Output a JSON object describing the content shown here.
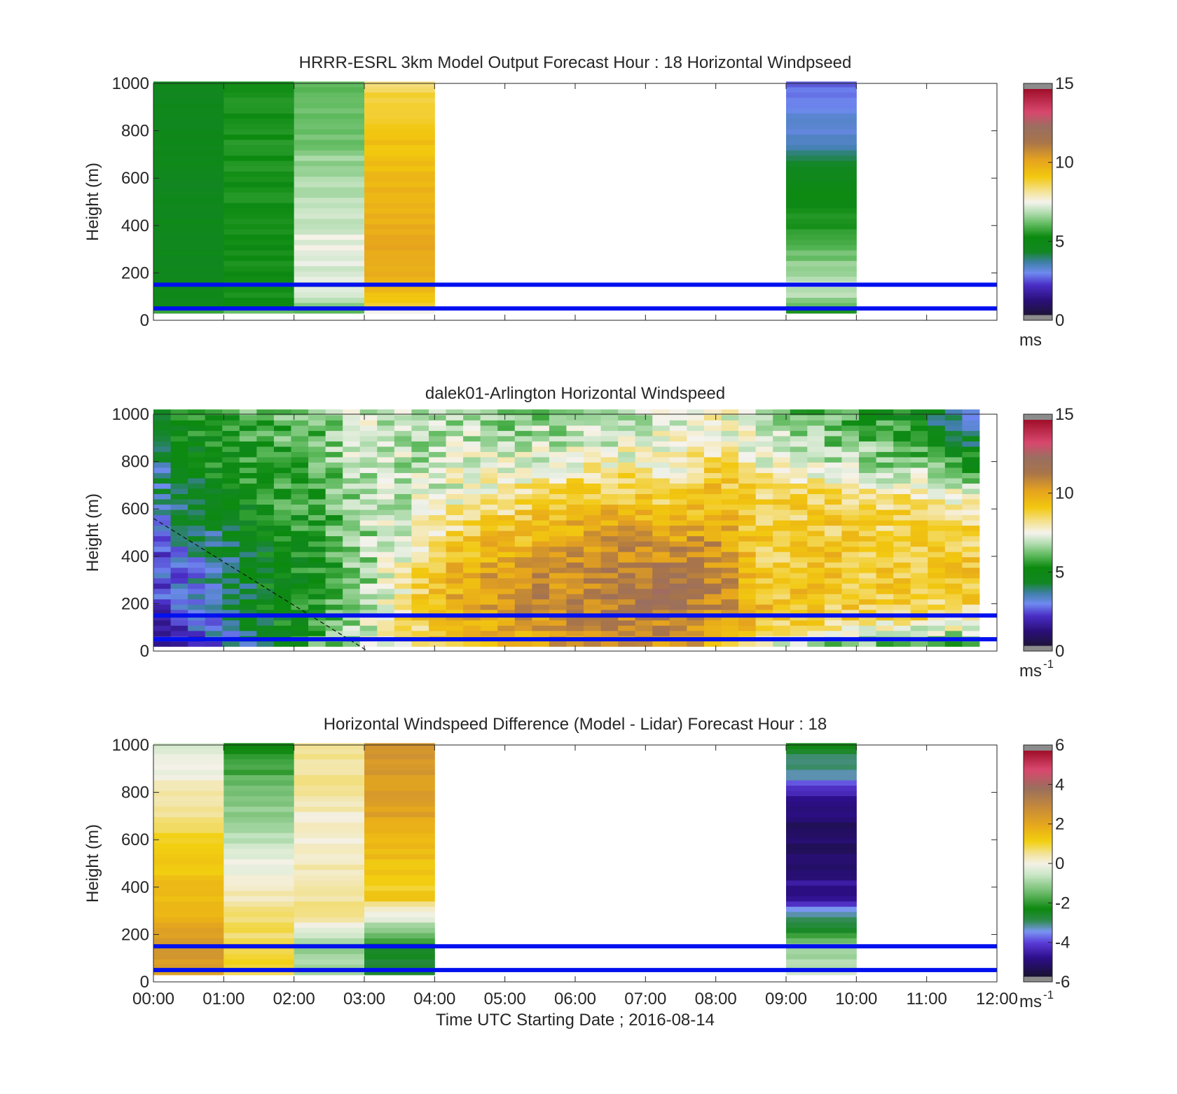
{
  "chart_data": [
    {
      "id": "model",
      "type": "heatmap",
      "title": "HRRR-ESRL 3km Model Output   Forecast Hour : 18 Horizontal Windpseed",
      "ylabel": "Height (m)",
      "xlabel": "",
      "ylim": [
        0,
        1000
      ],
      "xlim": [
        0,
        12
      ],
      "yticks": [
        "0",
        "200",
        "400",
        "600",
        "800",
        "1000"
      ],
      "xticks": [
        "00:00",
        "01:00",
        "02:00",
        "03:00",
        "04:00",
        "05:00",
        "06:00",
        "07:00",
        "08:00",
        "09:00",
        "10:00",
        "11:00",
        "12:00"
      ],
      "show_xtick_labels": false,
      "colorbar": {
        "scale": "windspeed",
        "min": 0,
        "max": 15,
        "ticks": [
          "0",
          "5",
          "10",
          "15"
        ],
        "unit": "ms",
        "unit_sup": ""
      },
      "reference_lines_m": [
        150,
        50
      ],
      "columns": [
        {
          "t0": 0,
          "t1": 1,
          "values": [
            [
              30,
              6.5
            ],
            [
              55,
              4.8
            ],
            [
              70,
              4.6
            ],
            [
              95,
              4.5
            ],
            [
              1000,
              4.5
            ]
          ]
        },
        {
          "t0": 1,
          "t1": 2,
          "values": [
            [
              30,
              6.8
            ],
            [
              60,
              5.2
            ],
            [
              1000,
              5.3
            ]
          ]
        },
        {
          "t0": 2,
          "t1": 3,
          "values": [
            [
              30,
              6.0
            ],
            [
              65,
              6.6
            ],
            [
              100,
              7.0
            ],
            [
              330,
              7.4
            ],
            [
              450,
              7.0
            ],
            [
              600,
              6.8
            ],
            [
              700,
              6.5
            ],
            [
              800,
              6.1
            ],
            [
              900,
              6.0
            ],
            [
              1000,
              6.0
            ]
          ]
        },
        {
          "t0": 3,
          "t1": 4,
          "values": [
            [
              30,
              7.2
            ],
            [
              70,
              9.0
            ],
            [
              100,
              9.5
            ],
            [
              250,
              10.2
            ],
            [
              500,
              9.8
            ],
            [
              800,
              9.3
            ],
            [
              900,
              9.0
            ],
            [
              1000,
              8.6
            ]
          ]
        },
        {
          "t0": 9,
          "t1": 10,
          "values": [
            [
              30,
              4.9
            ],
            [
              60,
              6.2
            ],
            [
              150,
              7.2
            ],
            [
              200,
              6.7
            ],
            [
              300,
              6.0
            ],
            [
              400,
              5.5
            ],
            [
              500,
              5.0
            ],
            [
              600,
              4.6
            ],
            [
              700,
              3.6
            ],
            [
              800,
              3.2
            ],
            [
              1000,
              2.5
            ]
          ]
        }
      ]
    },
    {
      "id": "lidar",
      "type": "heatmap",
      "title": "dalek01-Arlington  Horizontal Windspeed",
      "ylabel": "Height (m)",
      "xlabel": "",
      "ylim": [
        0,
        1000
      ],
      "xlim": [
        0,
        12
      ],
      "yticks": [
        "0",
        "200",
        "400",
        "600",
        "800",
        "1000"
      ],
      "xticks": [
        "00:00",
        "01:00",
        "02:00",
        "03:00",
        "04:00",
        "05:00",
        "06:00",
        "07:00",
        "08:00",
        "09:00",
        "10:00",
        "11:00",
        "12:00"
      ],
      "show_xtick_labels": false,
      "colorbar": {
        "scale": "windspeed",
        "min": 0,
        "max": 15,
        "ticks": [
          "0",
          "5",
          "10",
          "15"
        ],
        "unit": "ms",
        "unit_sup": "-1"
      },
      "reference_lines_m": [
        150,
        50
      ],
      "dashed_line": [
        [
          0,
          560
        ],
        [
          3.05,
          0
        ]
      ],
      "profiles": [
        [
          [
            0,
            1.6
          ],
          [
            200,
            2.0
          ],
          [
            400,
            2.6
          ],
          [
            550,
            3.2
          ],
          [
            700,
            3.6
          ],
          [
            800,
            3.8
          ],
          [
            900,
            4.6
          ],
          [
            1000,
            4.9
          ]
        ],
        [
          [
            0,
            2.6
          ],
          [
            200,
            3.2
          ],
          [
            400,
            3.6
          ],
          [
            600,
            4.4
          ],
          [
            800,
            5.1
          ],
          [
            1000,
            5.4
          ]
        ],
        [
          [
            0,
            4.3
          ],
          [
            200,
            4.6
          ],
          [
            400,
            4.7
          ],
          [
            600,
            5.2
          ],
          [
            800,
            5.6
          ],
          [
            1000,
            6.0
          ]
        ],
        [
          [
            0,
            5.8
          ],
          [
            200,
            5.2
          ],
          [
            400,
            5.2
          ],
          [
            600,
            5.6
          ],
          [
            800,
            6.0
          ],
          [
            1000,
            6.2
          ]
        ],
        [
          [
            0,
            7.2
          ],
          [
            300,
            6.4
          ],
          [
            500,
            6.6
          ],
          [
            700,
            6.9
          ],
          [
            900,
            7.1
          ],
          [
            1000,
            7.3
          ]
        ],
        [
          [
            0,
            8.0
          ],
          [
            150,
            8.8
          ],
          [
            300,
            8.5
          ],
          [
            500,
            7.6
          ],
          [
            700,
            7.0
          ],
          [
            1000,
            6.6
          ]
        ],
        [
          [
            0,
            9.6
          ],
          [
            200,
            10.3
          ],
          [
            350,
            10.0
          ],
          [
            500,
            8.8
          ],
          [
            700,
            7.6
          ],
          [
            1000,
            6.6
          ]
        ],
        [
          [
            0,
            9.8
          ],
          [
            200,
            10.8
          ],
          [
            400,
            10.2
          ],
          [
            600,
            8.6
          ],
          [
            800,
            7.4
          ],
          [
            1000,
            6.3
          ]
        ],
        [
          [
            0,
            10.2
          ],
          [
            200,
            11.2
          ],
          [
            400,
            10.6
          ],
          [
            650,
            9.3
          ],
          [
            800,
            7.5
          ],
          [
            1000,
            6.4
          ]
        ],
        [
          [
            0,
            10.4
          ],
          [
            250,
            11.6
          ],
          [
            450,
            10.8
          ],
          [
            650,
            9.3
          ],
          [
            800,
            7.8
          ],
          [
            1000,
            6.6
          ]
        ],
        [
          [
            0,
            10.2
          ],
          [
            250,
            12.0
          ],
          [
            400,
            11.0
          ],
          [
            600,
            9.3
          ],
          [
            750,
            8.0
          ],
          [
            1000,
            7.0
          ]
        ],
        [
          [
            0,
            10.0
          ],
          [
            250,
            11.2
          ],
          [
            450,
            10.6
          ],
          [
            700,
            9.4
          ],
          [
            850,
            8.0
          ],
          [
            1000,
            7.8
          ]
        ],
        [
          [
            0,
            7.0
          ],
          [
            150,
            9.6
          ],
          [
            350,
            9.0
          ],
          [
            650,
            8.6
          ],
          [
            800,
            7.4
          ],
          [
            1000,
            6.6
          ]
        ],
        [
          [
            0,
            6.0
          ],
          [
            150,
            9.0
          ],
          [
            400,
            9.4
          ],
          [
            650,
            8.8
          ],
          [
            800,
            7.0
          ],
          [
            1000,
            5.9
          ]
        ],
        [
          [
            0,
            5.6
          ],
          [
            150,
            8.9
          ],
          [
            400,
            9.0
          ],
          [
            650,
            8.3
          ],
          [
            800,
            6.5
          ],
          [
            1000,
            5.6
          ]
        ],
        [
          [
            0,
            5.2
          ],
          [
            150,
            8.8
          ],
          [
            400,
            9.0
          ],
          [
            650,
            8.4
          ],
          [
            800,
            6.5
          ],
          [
            1000,
            4.6
          ]
        ],
        [
          [
            0,
            4.8
          ],
          [
            150,
            8.6
          ],
          [
            350,
            9.2
          ],
          [
            600,
            8.3
          ],
          [
            750,
            6.0
          ],
          [
            900,
            4.0
          ],
          [
            1000,
            2.6
          ]
        ]
      ]
    },
    {
      "id": "difference",
      "type": "heatmap",
      "title": "Horizontal Windspeed Difference (Model - Lidar) Forecast Hour : 18",
      "ylabel": "Height (m)",
      "xlabel": "Time UTC  Starting Date ; 2016-08-14",
      "ylim": [
        0,
        1000
      ],
      "xlim": [
        0,
        12
      ],
      "yticks": [
        "0",
        "200",
        "400",
        "600",
        "800",
        "1000"
      ],
      "xticks": [
        "00:00",
        "01:00",
        "02:00",
        "03:00",
        "04:00",
        "05:00",
        "06:00",
        "07:00",
        "08:00",
        "09:00",
        "10:00",
        "11:00",
        "12:00"
      ],
      "show_xtick_labels": true,
      "colorbar": {
        "scale": "difference",
        "min": -6,
        "max": 6,
        "ticks": [
          "-6",
          "-4",
          "-2",
          "0",
          "2",
          "4",
          "6"
        ],
        "unit": "ms",
        "unit_sup": "-1"
      },
      "reference_lines_m": [
        150,
        50
      ],
      "columns": [
        {
          "t0": 0,
          "t1": 1,
          "values": [
            [
              30,
              2.2
            ],
            [
              100,
              2.6
            ],
            [
              250,
              2.0
            ],
            [
              400,
              1.6
            ],
            [
              600,
              1.1
            ],
            [
              750,
              0.5
            ],
            [
              850,
              0.2
            ],
            [
              950,
              -0.3
            ],
            [
              1000,
              -0.6
            ]
          ]
        },
        {
          "t0": 1,
          "t1": 2,
          "values": [
            [
              30,
              1.0
            ],
            [
              160,
              1.0
            ],
            [
              300,
              0.5
            ],
            [
              450,
              0.0
            ],
            [
              500,
              -0.1
            ],
            [
              600,
              -0.8
            ],
            [
              750,
              -1.3
            ],
            [
              900,
              -1.9
            ],
            [
              1000,
              -2.5
            ]
          ]
        },
        {
          "t0": 2,
          "t1": 3,
          "values": [
            [
              30,
              -0.9
            ],
            [
              160,
              -1.0
            ],
            [
              220,
              -0.2
            ],
            [
              300,
              0.6
            ],
            [
              500,
              0.3
            ],
            [
              700,
              0.1
            ],
            [
              800,
              0.5
            ],
            [
              1000,
              0.6
            ]
          ]
        },
        {
          "t0": 3,
          "t1": 4,
          "values": [
            [
              30,
              -3.0
            ],
            [
              150,
              -2.4
            ],
            [
              250,
              -0.6
            ],
            [
              350,
              1.2
            ],
            [
              500,
              1.4
            ],
            [
              700,
              2.2
            ],
            [
              1000,
              2.6
            ]
          ]
        },
        {
          "t0": 9,
          "t1": 10,
          "values": [
            [
              30,
              -0.4
            ],
            [
              100,
              -0.9
            ],
            [
              170,
              -1.4
            ],
            [
              220,
              -2.7
            ],
            [
              300,
              -3.6
            ],
            [
              350,
              -4.8
            ],
            [
              500,
              -5.2
            ],
            [
              650,
              -5.6
            ],
            [
              800,
              -4.6
            ],
            [
              850,
              -3.6
            ],
            [
              1000,
              -2.6
            ]
          ]
        }
      ]
    }
  ]
}
